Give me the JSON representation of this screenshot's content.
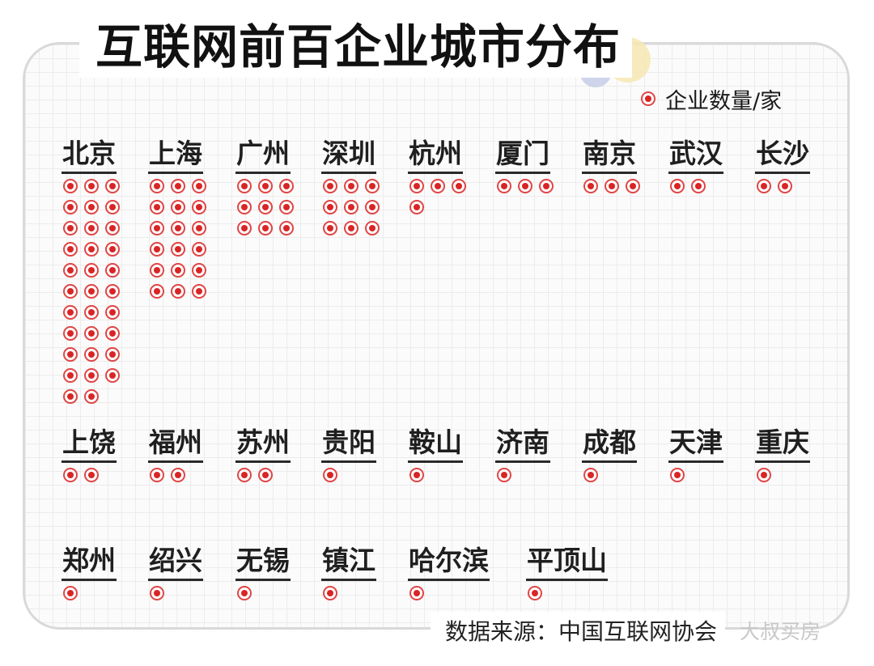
{
  "title": "互联网前百企业城市分布",
  "legend": {
    "label": "企业数量/家"
  },
  "source": "数据来源：中国互联网协会",
  "watermark": "大叔买房",
  "colors": {
    "dot_ring": "#e04545",
    "dot_center": "#d92525",
    "grid": "#ececec"
  },
  "chart_data": {
    "type": "table",
    "title": "互联网前百企业城市分布",
    "unit": "企业数量/家",
    "categories": [
      "北京",
      "上海",
      "广州",
      "深圳",
      "杭州",
      "厦门",
      "南京",
      "武汉",
      "长沙",
      "上饶",
      "福州",
      "苏州",
      "贵阳",
      "鞍山",
      "济南",
      "成都",
      "天津",
      "重庆",
      "郑州",
      "绍兴",
      "无锡",
      "镇江",
      "哈尔滨",
      "平顶山"
    ],
    "values": [
      32,
      18,
      9,
      9,
      4,
      3,
      3,
      2,
      2,
      2,
      2,
      2,
      1,
      1,
      1,
      1,
      1,
      1,
      1,
      1,
      1,
      1,
      1,
      1
    ]
  }
}
